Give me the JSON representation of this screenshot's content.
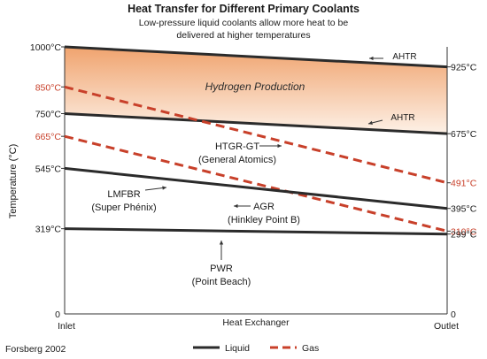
{
  "chart_data": {
    "type": "line",
    "title": "Heat Transfer for Different Primary Coolants",
    "subtitle_lines": [
      "Low-pressure liquid coolants allow more heat to be",
      "delivered at higher temperatures"
    ],
    "ylabel": "Temperature (°C)",
    "xlabel": "Heat Exchanger",
    "x_categories": [
      "Inlet",
      "Outlet"
    ],
    "ylim": [
      0,
      1000
    ],
    "source": "Forsberg 2002",
    "region_label": "Hydrogen Production",
    "legend": [
      {
        "name": "Liquid",
        "style": "solid",
        "color": "#2b2b2b"
      },
      {
        "name": "Gas",
        "style": "dashed",
        "color": "#c8402a"
      }
    ],
    "colors": {
      "liquid": "#2b2b2b",
      "gas": "#c8402a",
      "band_top": "#f0a36e",
      "band_bottom": "#fdf1e7"
    },
    "series": [
      {
        "name": "AHTR",
        "kind": "liquid",
        "values": [
          1000,
          925
        ],
        "left_label": "1000°C",
        "right_label": "925°C",
        "annotation": [
          "AHTR"
        ]
      },
      {
        "name": "AHTR",
        "kind": "liquid",
        "values": [
          750,
          675
        ],
        "left_label": "750°C",
        "right_label": "675°C",
        "annotation": [
          "AHTR"
        ]
      },
      {
        "name": "HTGR-GT",
        "kind": "gas",
        "values": [
          850,
          491
        ],
        "left_label": "850°C",
        "right_label": "491°C",
        "annotation": [
          "HTGR-GT",
          "(General Atomics)"
        ]
      },
      {
        "name": "AGR",
        "kind": "gas",
        "values": [
          665,
          310
        ],
        "left_label": "665°C",
        "right_label": "310°C",
        "annotation": [
          "AGR",
          "(Hinkley Point B)"
        ]
      },
      {
        "name": "LMFBR",
        "kind": "liquid",
        "values": [
          545,
          395
        ],
        "left_label": "545°C",
        "right_label": "395°C",
        "annotation": [
          "LMFBR",
          "(Super Phénix)"
        ]
      },
      {
        "name": "PWR",
        "kind": "liquid",
        "values": [
          319,
          299
        ],
        "left_label": "319°C",
        "right_label": "299°C",
        "annotation": [
          "PWR",
          "(Point Beach)"
        ]
      }
    ],
    "zero_labels": [
      "0",
      "0"
    ]
  }
}
